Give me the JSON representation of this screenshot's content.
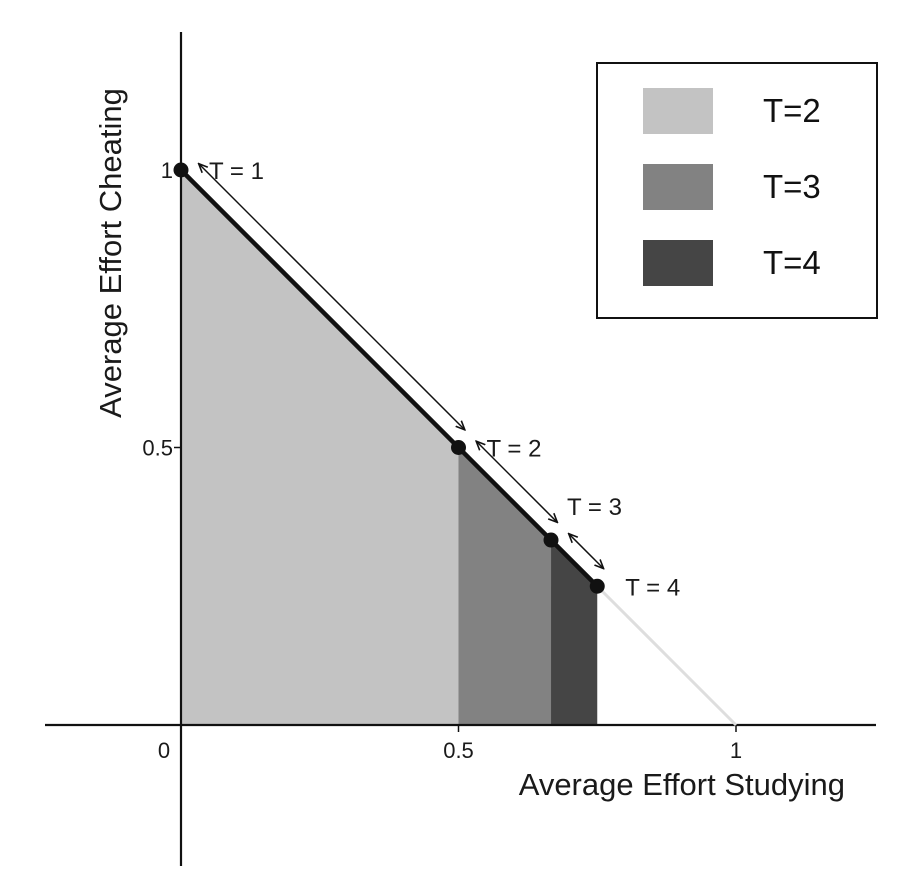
{
  "chart_data": {
    "type": "area",
    "xlabel": "Average Effort Studying",
    "ylabel": "Average Effort Cheating",
    "xlim": [
      -0.25,
      1.25
    ],
    "ylim": [
      -0.25,
      1.25
    ],
    "x_ticks": [
      {
        "value": 0,
        "label": "0"
      },
      {
        "value": 0.5,
        "label": "0.5"
      },
      {
        "value": 1,
        "label": "1"
      }
    ],
    "y_ticks": [
      {
        "value": 0.5,
        "label": "0.5"
      },
      {
        "value": 1,
        "label": "1"
      }
    ],
    "frontier": {
      "x": [
        0,
        1
      ],
      "y": [
        1,
        0
      ]
    },
    "points": [
      {
        "label": "T = 1",
        "x": 0,
        "y": 1
      },
      {
        "label": "T = 2",
        "x": 0.5,
        "y": 0.5
      },
      {
        "label": "T = 3",
        "x": 0.6667,
        "y": 0.3333
      },
      {
        "label": "T = 4",
        "x": 0.75,
        "y": 0.25
      }
    ],
    "regions": [
      {
        "name": "T=2",
        "x_from": 0,
        "x_to": 0.5,
        "color": "#c3c3c3"
      },
      {
        "name": "T=3",
        "x_from": 0.5,
        "x_to": 0.6667,
        "color": "#828282"
      },
      {
        "name": "T=4",
        "x_from": 0.6667,
        "x_to": 0.75,
        "color": "#454545"
      }
    ],
    "legend": {
      "position": "top-right",
      "entries": [
        {
          "label": "T=2",
          "color": "#c3c3c3"
        },
        {
          "label": "T=3",
          "color": "#828282"
        },
        {
          "label": "T=4",
          "color": "#454545"
        }
      ]
    }
  }
}
